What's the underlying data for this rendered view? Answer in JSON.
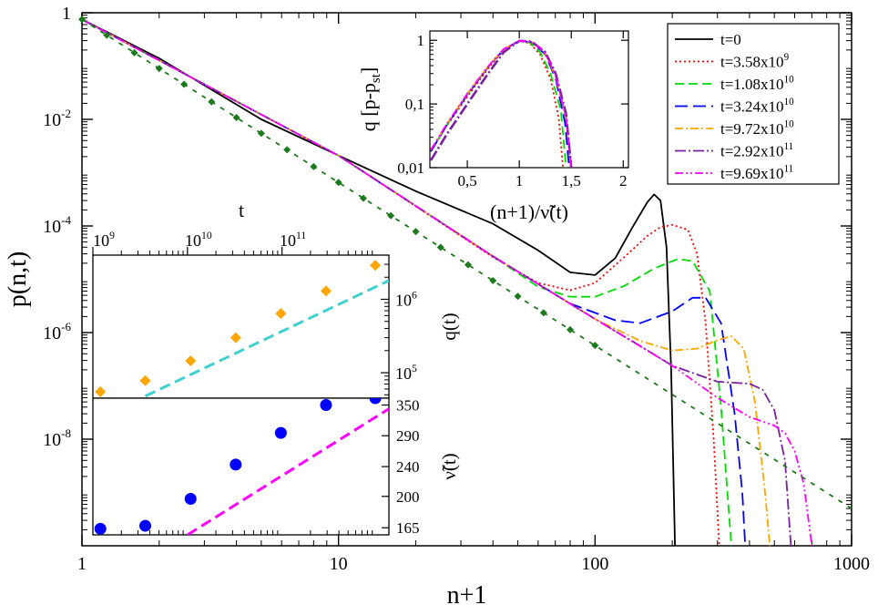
{
  "chart_data": [
    {
      "id": "main",
      "type": "line",
      "xscale": "log",
      "yscale": "log",
      "xlabel": "n+1",
      "ylabel": "p(n,t)",
      "xlim": [
        1,
        1000
      ],
      "ylim": [
        1e-10,
        1
      ],
      "xticks": [
        {
          "value": 1,
          "label": "1"
        },
        {
          "value": 10,
          "label": "10"
        },
        {
          "value": 100,
          "label": "100"
        },
        {
          "value": 1000,
          "label": "1000"
        }
      ],
      "yticks": [
        {
          "value": 1,
          "label": "1"
        },
        {
          "value": 0.01,
          "label": "10",
          "exp": "-2"
        },
        {
          "value": 0.0001,
          "label": "10",
          "exp": "-4"
        },
        {
          "value": 1e-06,
          "label": "10",
          "exp": "-6"
        },
        {
          "value": 1e-08,
          "label": "10",
          "exp": "-8"
        }
      ],
      "legend_position": "top-right",
      "series": [
        {
          "name": "t=0",
          "label": "t=0",
          "exp": "",
          "color": "#000000",
          "dash": "none",
          "points": [
            [
              1,
              0.75
            ],
            [
              2,
              0.14
            ],
            [
              5,
              0.01
            ],
            [
              10,
              0.0021
            ],
            [
              20,
              0.00045
            ],
            [
              40,
              0.00011
            ],
            [
              60,
              3.5e-05
            ],
            [
              80,
              1.35e-05
            ],
            [
              100,
              1.2e-05
            ],
            [
              120,
              2.5e-05
            ],
            [
              140,
              9.5e-05
            ],
            [
              160,
              0.00028
            ],
            [
              170,
              0.00039
            ],
            [
              180,
              0.0003
            ],
            [
              190,
              4e-05
            ],
            [
              198,
              2e-07
            ],
            [
              205,
              1e-10
            ]
          ]
        },
        {
          "name": "t=3.58x10^9",
          "label": "t=3.58x10",
          "exp": "9",
          "color": "#ff0000",
          "dash": "2,3",
          "points": [
            [
              1,
              0.75
            ],
            [
              10,
              0.0021
            ],
            [
              40,
              2.6e-05
            ],
            [
              60,
              8.5e-06
            ],
            [
              80,
              6.2e-06
            ],
            [
              100,
              8.5e-06
            ],
            [
              130,
              2.6e-05
            ],
            [
              160,
              6.5e-05
            ],
            [
              180,
              9.5e-05
            ],
            [
              200,
              0.000105
            ],
            [
              230,
              8.5e-05
            ],
            [
              250,
              3e-05
            ],
            [
              270,
              1.5e-06
            ],
            [
              290,
              1e-08
            ],
            [
              305,
              1e-10
            ]
          ]
        },
        {
          "name": "t=1.08x10^10",
          "label": "t=1.08x10",
          "exp": "10",
          "color": "#00dd00",
          "dash": "10,5",
          "points": [
            [
              1,
              0.75
            ],
            [
              10,
              0.0021
            ],
            [
              40,
              2.7e-05
            ],
            [
              60,
              7.2e-06
            ],
            [
              80,
              4.7e-06
            ],
            [
              100,
              4.7e-06
            ],
            [
              130,
              7.5e-06
            ],
            [
              170,
              1.6e-05
            ],
            [
              210,
              2.4e-05
            ],
            [
              240,
              2.2e-05
            ],
            [
              280,
              6e-06
            ],
            [
              310,
              4e-08
            ],
            [
              340,
              1e-10
            ]
          ]
        },
        {
          "name": "t=3.24x10^10",
          "label": "t=3.24x10",
          "exp": "10",
          "color": "#0000ff",
          "dash": "14,6",
          "points": [
            [
              1,
              0.75
            ],
            [
              10,
              0.0021
            ],
            [
              40,
              2.7e-05
            ],
            [
              80,
              3.5e-06
            ],
            [
              120,
              1.7e-06
            ],
            [
              150,
              1.5e-06
            ],
            [
              200,
              2.5e-06
            ],
            [
              240,
              4.5e-06
            ],
            [
              270,
              4.5e-06
            ],
            [
              310,
              1.5e-06
            ],
            [
              350,
              3e-08
            ],
            [
              375,
              1e-09
            ],
            [
              385,
              1e-10
            ]
          ]
        },
        {
          "name": "t=9.72x10^10",
          "label": "t=9.72x10",
          "exp": "10",
          "color": "#ffa500",
          "dash": "9,3,2,3",
          "points": [
            [
              1,
              0.75
            ],
            [
              10,
              0.0021
            ],
            [
              40,
              2.7e-05
            ],
            [
              100,
              1.8e-06
            ],
            [
              150,
              7e-07
            ],
            [
              200,
              4.6e-07
            ],
            [
              250,
              5e-07
            ],
            [
              300,
              7.2e-07
            ],
            [
              340,
              8.5e-07
            ],
            [
              380,
              5e-07
            ],
            [
              420,
              5e-08
            ],
            [
              460,
              1e-09
            ],
            [
              480,
              1e-10
            ]
          ]
        },
        {
          "name": "t=2.92x10^11",
          "label": "t=2.92x10",
          "exp": "11",
          "color": "#7b1fa2",
          "dash": "12,3,2,3",
          "points": [
            [
              1,
              0.75
            ],
            [
              10,
              0.0021
            ],
            [
              40,
              2.7e-05
            ],
            [
              100,
              1.8e-06
            ],
            [
              150,
              5.6e-07
            ],
            [
              200,
              2.4e-07
            ],
            [
              300,
              1.2e-07
            ],
            [
              400,
              1.1e-07
            ],
            [
              450,
              8.5e-08
            ],
            [
              500,
              3.5e-08
            ],
            [
              550,
              4e-09
            ],
            [
              580,
              1e-10
            ]
          ]
        },
        {
          "name": "t=9.69x10^11",
          "label": "t=9.69x10",
          "exp": "11",
          "color": "#ff00ff",
          "dash": "9,3,2,3,2,3",
          "points": [
            [
              1,
              0.75
            ],
            [
              10,
              0.0021
            ],
            [
              40,
              2.7e-05
            ],
            [
              100,
              1.8e-06
            ],
            [
              200,
              2.4e-07
            ],
            [
              300,
              6e-08
            ],
            [
              400,
              2.6e-08
            ],
            [
              500,
              1.8e-08
            ],
            [
              550,
              1.3e-08
            ],
            [
              600,
              6e-09
            ],
            [
              650,
              1.5e-09
            ],
            [
              700,
              1e-10
            ]
          ]
        },
        {
          "name": "power law",
          "color": "#1b7a1b",
          "dash": "5,7",
          "legend": false,
          "points": [
            [
              1,
              0.75
            ],
            [
              1000,
              5e-10
            ]
          ]
        }
      ],
      "markers": {
        "shape": "diamond",
        "color": "#1b7a1b",
        "x": [
          1,
          1.25,
          1.6,
          2,
          2.5,
          3.2,
          4,
          5,
          6.3,
          8,
          10,
          12.5,
          16,
          20,
          25,
          32,
          40,
          50,
          63,
          80,
          100
        ]
      }
    },
    {
      "id": "inset_top",
      "type": "line",
      "xscale": "linear",
      "yscale": "log",
      "xlabel": "(n+1)/ν̃(t)",
      "ylabel": "q [p-p",
      "ylabel_sub": "st",
      "ylabel_end": "]",
      "xlim": [
        0.14,
        2.05
      ],
      "ylim": [
        0.01,
        1.4
      ],
      "xticks": [
        {
          "value": 0.5,
          "label": "0,5"
        },
        {
          "value": 1,
          "label": "1"
        },
        {
          "value": 1.5,
          "label": "1,5"
        },
        {
          "value": 2,
          "label": "2"
        }
      ],
      "yticks": [
        {
          "value": 0.01,
          "label": "0,01"
        },
        {
          "value": 0.1,
          "label": "0,1"
        },
        {
          "value": 1,
          "label": "1"
        }
      ],
      "series": [
        {
          "name": "t=3.58x10^9",
          "color": "#ff0000",
          "dash": "2,3",
          "points": [
            [
              0.15,
              0.018
            ],
            [
              0.3,
              0.045
            ],
            [
              0.5,
              0.13
            ],
            [
              0.7,
              0.36
            ],
            [
              0.85,
              0.7
            ],
            [
              1.0,
              0.98
            ],
            [
              1.1,
              0.9
            ],
            [
              1.2,
              0.6
            ],
            [
              1.3,
              0.25
            ],
            [
              1.38,
              0.06
            ],
            [
              1.42,
              0.01
            ]
          ]
        },
        {
          "name": "t=1.08x10^10",
          "color": "#00dd00",
          "dash": "10,5",
          "points": [
            [
              0.15,
              0.018
            ],
            [
              0.3,
              0.046
            ],
            [
              0.5,
              0.14
            ],
            [
              0.7,
              0.38
            ],
            [
              0.85,
              0.72
            ],
            [
              1.0,
              0.98
            ],
            [
              1.1,
              0.92
            ],
            [
              1.2,
              0.65
            ],
            [
              1.3,
              0.3
            ],
            [
              1.4,
              0.08
            ],
            [
              1.45,
              0.01
            ]
          ]
        },
        {
          "name": "t=3.24x10^10",
          "color": "#0000ff",
          "dash": "14,6",
          "points": [
            [
              0.15,
              0.018
            ],
            [
              0.3,
              0.046
            ],
            [
              0.5,
              0.14
            ],
            [
              0.7,
              0.38
            ],
            [
              0.85,
              0.72
            ],
            [
              1.0,
              0.98
            ],
            [
              1.12,
              0.93
            ],
            [
              1.25,
              0.6
            ],
            [
              1.35,
              0.25
            ],
            [
              1.44,
              0.05
            ],
            [
              1.48,
              0.01
            ]
          ]
        },
        {
          "name": "t=9.72x10^10",
          "color": "#ffa500",
          "dash": "9,3,2,3",
          "points": [
            [
              0.15,
              0.019
            ],
            [
              0.3,
              0.048
            ],
            [
              0.5,
              0.145
            ],
            [
              0.7,
              0.39
            ],
            [
              0.85,
              0.73
            ],
            [
              1.0,
              0.98
            ],
            [
              1.12,
              0.94
            ],
            [
              1.25,
              0.62
            ],
            [
              1.35,
              0.27
            ],
            [
              1.45,
              0.06
            ],
            [
              1.5,
              0.01
            ]
          ]
        },
        {
          "name": "t=2.92x10^11",
          "color": "#7b1fa2",
          "dash": "12,3,2,3",
          "points": [
            [
              0.15,
              0.013
            ],
            [
              0.3,
              0.033
            ],
            [
              0.5,
              0.1
            ],
            [
              0.7,
              0.3
            ],
            [
              0.85,
              0.65
            ],
            [
              1.0,
              0.98
            ],
            [
              1.12,
              0.95
            ],
            [
              1.25,
              0.65
            ],
            [
              1.35,
              0.3
            ],
            [
              1.45,
              0.07
            ],
            [
              1.5,
              0.01
            ]
          ]
        },
        {
          "name": "t=9.69x10^11",
          "color": "#ff00ff",
          "dash": "9,3,2,3,2,3",
          "points": [
            [
              0.15,
              0.019
            ],
            [
              0.3,
              0.048
            ],
            [
              0.5,
              0.145
            ],
            [
              0.7,
              0.39
            ],
            [
              0.85,
              0.73
            ],
            [
              1.0,
              0.98
            ],
            [
              1.12,
              0.95
            ],
            [
              1.25,
              0.64
            ],
            [
              1.35,
              0.28
            ],
            [
              1.45,
              0.06
            ],
            [
              1.5,
              0.01
            ]
          ]
        }
      ]
    },
    {
      "id": "inset_q",
      "type": "scatter",
      "xscale": "log",
      "yscale": "log",
      "top_axis_label": "t",
      "ylabel": "q(t)",
      "xlim": [
        1000000000.0,
        1350000000000.0
      ],
      "ylim": [
        45000,
        4000000
      ],
      "top_xticks": [
        {
          "value": 1000000000.0,
          "label": "10",
          "exp": "9"
        },
        {
          "value": 10000000000.0,
          "label": "10",
          "exp": "10"
        },
        {
          "value": 100000000000.0,
          "label": "10",
          "exp": "11"
        }
      ],
      "yticks": [
        {
          "value": 100000,
          "label": "10",
          "exp": "5"
        },
        {
          "value": 1000000,
          "label": "10",
          "exp": "6"
        }
      ],
      "points": {
        "color": "#ffa500",
        "shape": "diamond",
        "x": [
          1200000000.0,
          3580000000.0,
          10800000000.0,
          32400000000.0,
          97200000000.0,
          292000000000.0,
          969000000000.0
        ],
        "y": [
          55000,
          78000,
          145000,
          300000,
          640000,
          1300000,
          2900000
        ]
      },
      "fit": {
        "color": "#40d0d0",
        "dash": "12,6",
        "points": [
          [
            3580000000.0,
            48000
          ],
          [
            1350000000000.0,
            1800000
          ]
        ]
      }
    },
    {
      "id": "inset_nu",
      "type": "scatter",
      "xscale": "log",
      "yscale": "log",
      "ylabel": "ν̃(t)",
      "xlim": [
        1000000000.0,
        1350000000000.0
      ],
      "ylim": [
        158,
        365
      ],
      "yticks": [
        {
          "value": 165,
          "label": "165"
        },
        {
          "value": 200,
          "label": "200"
        },
        {
          "value": 240,
          "label": "240"
        },
        {
          "value": 290,
          "label": "290"
        },
        {
          "value": 350,
          "label": "350"
        }
      ],
      "points": {
        "color": "#0000ff",
        "shape": "circle",
        "x": [
          1200000000.0,
          3580000000.0,
          10800000000.0,
          32400000000.0,
          97200000000.0,
          292000000000.0,
          969000000000.0
        ],
        "y": [
          164,
          167,
          197,
          243,
          295,
          350,
          365
        ]
      },
      "fit": {
        "color": "#ff00ff",
        "dash": "12,6",
        "points": [
          [
            10000000000.0,
            158
          ],
          [
            1350000000000.0,
            342
          ]
        ]
      }
    }
  ]
}
